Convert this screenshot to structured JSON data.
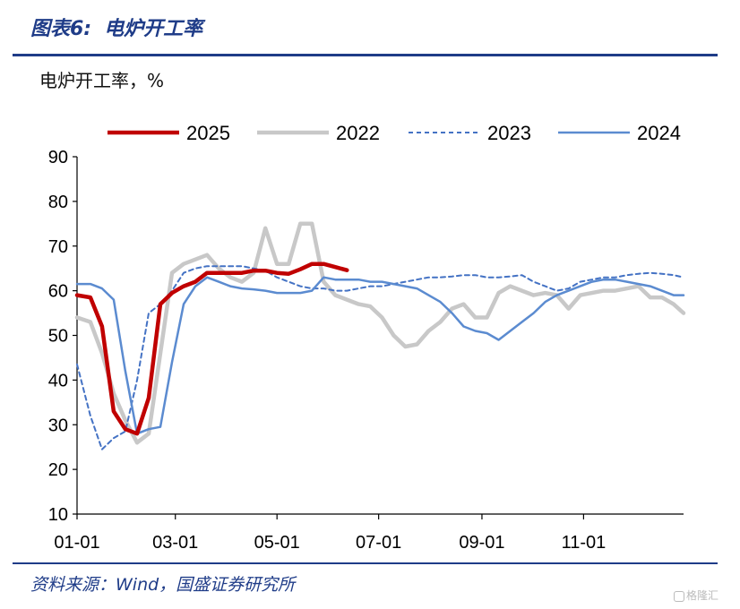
{
  "header": {
    "figure_no": "图表6:",
    "figure_title": "电炉开工率"
  },
  "unit_label": "电炉开工率，%",
  "source": "资料来源：Wind，国盛证券研究所",
  "watermark": "格隆汇",
  "colors": {
    "title_blue": "#1f3c88",
    "s2025": "#c00000",
    "s2022": "#c8c8c8",
    "s2023": "#4472c4",
    "s2024": "#5b8bd0"
  },
  "chart_data": {
    "type": "line",
    "x_axis": {
      "start": "01-01",
      "end": "12-31",
      "ticks": [
        "01-01",
        "03-01",
        "05-01",
        "07-01",
        "09-01",
        "11-01"
      ]
    },
    "ylim": [
      10,
      90
    ],
    "yticks": [
      10,
      20,
      30,
      40,
      50,
      60,
      70,
      80,
      90
    ],
    "legend_position": "top",
    "series": [
      {
        "name": "2025",
        "style": "thick-solid",
        "color": "#c00000",
        "points": [
          [
            "01-01",
            59
          ],
          [
            "01-09",
            58.5
          ],
          [
            "01-16",
            52
          ],
          [
            "01-23",
            33
          ],
          [
            "01-30",
            29
          ],
          [
            "02-06",
            28
          ],
          [
            "02-13",
            36
          ],
          [
            "02-20",
            57
          ],
          [
            "02-27",
            59.5
          ],
          [
            "03-06",
            61
          ],
          [
            "03-13",
            62
          ],
          [
            "03-20",
            64
          ],
          [
            "03-27",
            64
          ],
          [
            "04-03",
            64
          ],
          [
            "04-10",
            64
          ],
          [
            "04-17",
            64.5
          ],
          [
            "04-24",
            64.5
          ],
          [
            "05-01",
            64
          ],
          [
            "05-08",
            63.8
          ],
          [
            "05-15",
            64.8
          ],
          [
            "05-22",
            66
          ],
          [
            "05-29",
            66
          ],
          [
            "06-05",
            65.3
          ],
          [
            "06-12",
            64.6
          ]
        ]
      },
      {
        "name": "2022",
        "style": "thick-solid",
        "color": "#c8c8c8",
        "points": [
          [
            "01-01",
            54
          ],
          [
            "01-09",
            53
          ],
          [
            "01-16",
            46
          ],
          [
            "01-23",
            37
          ],
          [
            "01-30",
            31
          ],
          [
            "02-06",
            26
          ],
          [
            "02-13",
            28
          ],
          [
            "02-20",
            46
          ],
          [
            "02-27",
            64
          ],
          [
            "03-06",
            66
          ],
          [
            "03-13",
            67
          ],
          [
            "03-20",
            68
          ],
          [
            "03-27",
            65
          ],
          [
            "04-03",
            63
          ],
          [
            "04-10",
            62
          ],
          [
            "04-17",
            64
          ],
          [
            "04-24",
            74
          ],
          [
            "05-01",
            66
          ],
          [
            "05-08",
            66
          ],
          [
            "05-15",
            75
          ],
          [
            "05-22",
            75
          ],
          [
            "05-29",
            62
          ],
          [
            "06-05",
            59
          ],
          [
            "06-12",
            58
          ],
          [
            "06-19",
            57
          ],
          [
            "06-26",
            56.5
          ],
          [
            "07-03",
            54
          ],
          [
            "07-10",
            50
          ],
          [
            "07-17",
            47.5
          ],
          [
            "07-24",
            48
          ],
          [
            "07-31",
            51
          ],
          [
            "08-07",
            53
          ],
          [
            "08-14",
            56
          ],
          [
            "08-21",
            57
          ],
          [
            "08-28",
            54
          ],
          [
            "09-04",
            54
          ],
          [
            "09-11",
            59.5
          ],
          [
            "09-18",
            61
          ],
          [
            "09-25",
            60
          ],
          [
            "10-02",
            59
          ],
          [
            "10-09",
            59.5
          ],
          [
            "10-16",
            59
          ],
          [
            "10-23",
            56
          ],
          [
            "10-30",
            59
          ],
          [
            "11-06",
            59.5
          ],
          [
            "11-13",
            60
          ],
          [
            "11-20",
            60
          ],
          [
            "11-27",
            60.5
          ],
          [
            "12-04",
            61
          ],
          [
            "12-11",
            58.5
          ],
          [
            "12-18",
            58.5
          ],
          [
            "12-25",
            57
          ],
          [
            "12-31",
            55
          ]
        ]
      },
      {
        "name": "2023",
        "style": "dashed",
        "color": "#4472c4",
        "points": [
          [
            "01-01",
            43.5
          ],
          [
            "01-09",
            32
          ],
          [
            "01-16",
            24.5
          ],
          [
            "01-23",
            27
          ],
          [
            "01-30",
            28.5
          ],
          [
            "02-06",
            40
          ],
          [
            "02-13",
            55
          ],
          [
            "02-20",
            57
          ],
          [
            "02-27",
            60
          ],
          [
            "03-06",
            64
          ],
          [
            "03-13",
            65
          ],
          [
            "03-20",
            65.5
          ],
          [
            "03-27",
            65.5
          ],
          [
            "04-03",
            65.5
          ],
          [
            "04-10",
            65.5
          ],
          [
            "04-17",
            65
          ],
          [
            "04-24",
            64.5
          ],
          [
            "05-01",
            63
          ],
          [
            "05-08",
            62
          ],
          [
            "05-15",
            61
          ],
          [
            "05-22",
            60.5
          ],
          [
            "05-29",
            60.5
          ],
          [
            "06-05",
            60
          ],
          [
            "06-12",
            60
          ],
          [
            "06-19",
            60.5
          ],
          [
            "06-26",
            61
          ],
          [
            "07-03",
            61
          ],
          [
            "07-10",
            61.5
          ],
          [
            "07-17",
            62
          ],
          [
            "07-24",
            62.5
          ],
          [
            "07-31",
            63
          ],
          [
            "08-07",
            63
          ],
          [
            "08-14",
            63.2
          ],
          [
            "08-21",
            63.5
          ],
          [
            "08-28",
            63.5
          ],
          [
            "09-04",
            63
          ],
          [
            "09-11",
            63
          ],
          [
            "09-18",
            63.2
          ],
          [
            "09-25",
            63.5
          ],
          [
            "10-02",
            62
          ],
          [
            "10-09",
            61
          ],
          [
            "10-16",
            60
          ],
          [
            "10-23",
            60.5
          ],
          [
            "10-30",
            62
          ],
          [
            "11-06",
            62.5
          ],
          [
            "11-13",
            63
          ],
          [
            "11-20",
            63
          ],
          [
            "11-27",
            63.5
          ],
          [
            "12-04",
            63.8
          ],
          [
            "12-11",
            64
          ],
          [
            "12-18",
            63.8
          ],
          [
            "12-25",
            63.5
          ],
          [
            "12-31",
            63
          ]
        ]
      },
      {
        "name": "2024",
        "style": "thin-solid",
        "color": "#5b8bd0",
        "points": [
          [
            "01-01",
            61.5
          ],
          [
            "01-09",
            61.5
          ],
          [
            "01-16",
            60.5
          ],
          [
            "01-23",
            58
          ],
          [
            "01-30",
            42
          ],
          [
            "02-06",
            28
          ],
          [
            "02-13",
            29
          ],
          [
            "02-20",
            29.5
          ],
          [
            "02-27",
            44
          ],
          [
            "03-06",
            57
          ],
          [
            "03-13",
            61
          ],
          [
            "03-20",
            63
          ],
          [
            "03-27",
            62
          ],
          [
            "04-03",
            61
          ],
          [
            "04-10",
            60.5
          ],
          [
            "04-17",
            60.3
          ],
          [
            "04-24",
            60
          ],
          [
            "05-01",
            59.5
          ],
          [
            "05-08",
            59.5
          ],
          [
            "05-15",
            59.5
          ],
          [
            "05-22",
            60
          ],
          [
            "05-29",
            63
          ],
          [
            "06-05",
            62.5
          ],
          [
            "06-12",
            62.5
          ],
          [
            "06-19",
            62.5
          ],
          [
            "06-26",
            62
          ],
          [
            "07-03",
            62
          ],
          [
            "07-10",
            61.5
          ],
          [
            "07-17",
            61
          ],
          [
            "07-24",
            60.5
          ],
          [
            "07-31",
            59
          ],
          [
            "08-07",
            57.5
          ],
          [
            "08-14",
            55
          ],
          [
            "08-21",
            52
          ],
          [
            "08-28",
            51
          ],
          [
            "09-04",
            50.5
          ],
          [
            "09-11",
            49
          ],
          [
            "09-18",
            51
          ],
          [
            "09-25",
            53
          ],
          [
            "10-02",
            55
          ],
          [
            "10-09",
            57.5
          ],
          [
            "10-16",
            59
          ],
          [
            "10-23",
            60
          ],
          [
            "10-30",
            61
          ],
          [
            "11-06",
            62
          ],
          [
            "11-13",
            62.5
          ],
          [
            "11-20",
            62.5
          ],
          [
            "11-27",
            62
          ],
          [
            "12-04",
            61.5
          ],
          [
            "12-11",
            61
          ],
          [
            "12-18",
            60
          ],
          [
            "12-25",
            59
          ],
          [
            "12-31",
            59
          ]
        ]
      }
    ]
  }
}
